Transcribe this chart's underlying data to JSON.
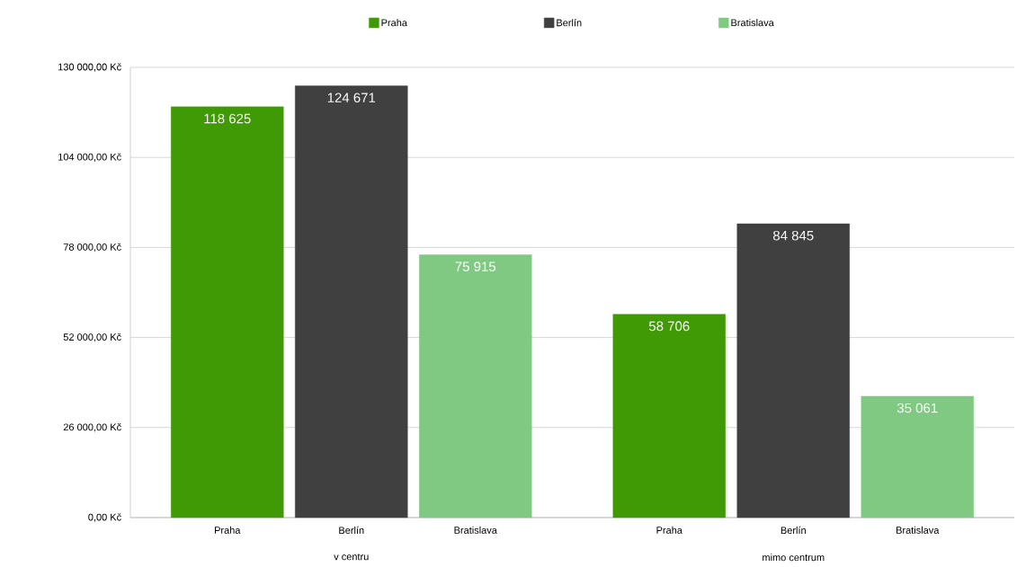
{
  "chart_data": {
    "type": "bar",
    "categories": [
      "v centru",
      "mimo centrum"
    ],
    "series": [
      {
        "name": "Praha",
        "color": "#3f9a06",
        "values": [
          118625,
          58706
        ],
        "value_labels": [
          "118 625",
          "58 706"
        ]
      },
      {
        "name": "Berlín",
        "color": "#404040",
        "values": [
          124671,
          84845
        ],
        "value_labels": [
          "124 671",
          "84 845"
        ]
      },
      {
        "name": "Bratislava",
        "color": "#80c982",
        "values": [
          75915,
          35061
        ],
        "value_labels": [
          "75 915",
          "35 061"
        ]
      }
    ],
    "ylim": [
      0,
      130000
    ],
    "yticks": [
      {
        "value": 0,
        "label": "0,00 Kč"
      },
      {
        "value": 26000,
        "label": "26 000,00 Kč"
      },
      {
        "value": 52000,
        "label": "52 000,00 Kč"
      },
      {
        "value": 78000,
        "label": "78 000,00 Kč"
      },
      {
        "value": 104000,
        "label": "104 000,00 Kč"
      },
      {
        "value": 130000,
        "label": "130 000,00 Kč"
      }
    ],
    "grid": "y",
    "legend": "top"
  }
}
